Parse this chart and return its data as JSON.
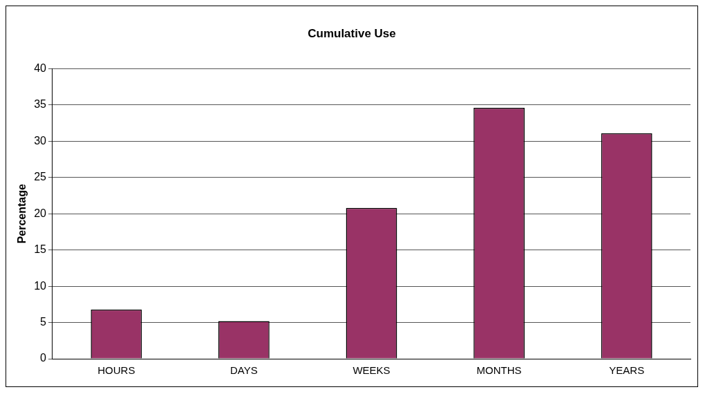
{
  "chart_data": {
    "type": "bar",
    "title": "Cumulative Use",
    "ylabel": "Percentage",
    "categories": [
      "HOURS",
      "DAYS",
      "WEEKS",
      "MONTHS",
      "YEARS"
    ],
    "values": [
      6.8,
      5.2,
      20.8,
      34.6,
      31.1
    ],
    "color": "#993366",
    "ylim": [
      0,
      40
    ],
    "yticks": [
      0,
      5,
      10,
      15,
      20,
      25,
      30,
      35,
      40
    ],
    "grid": "y",
    "legend": false
  }
}
